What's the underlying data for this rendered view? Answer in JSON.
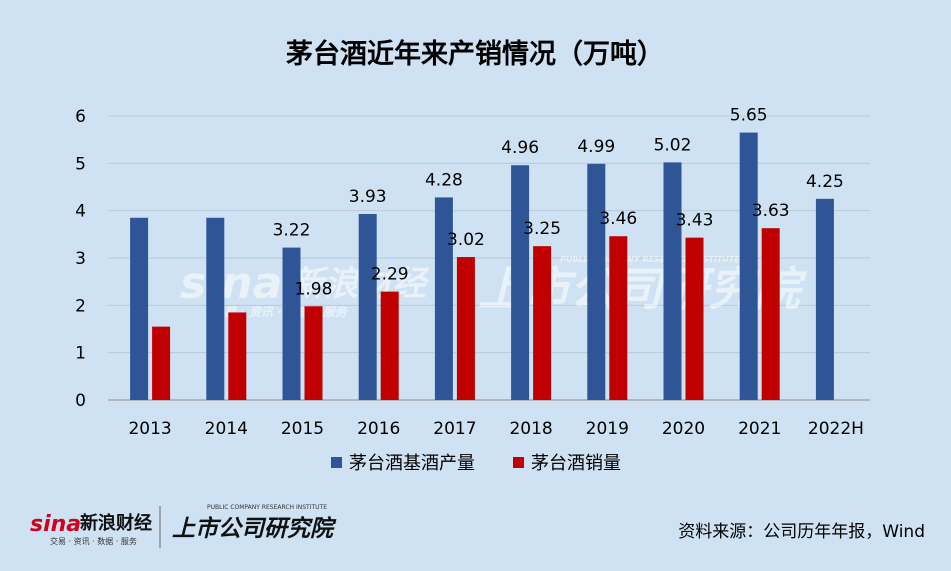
{
  "chart_data": {
    "type": "bar",
    "title": "茅台酒近年来产销情况（万吨）",
    "categories": [
      "2013",
      "2014",
      "2015",
      "2016",
      "2017",
      "2018",
      "2019",
      "2020",
      "2021",
      "2022H"
    ],
    "series": [
      {
        "name": "茅台酒基酒产量",
        "color": "#2f5597",
        "values": [
          3.85,
          3.85,
          3.22,
          3.93,
          4.28,
          4.96,
          4.99,
          5.02,
          5.65,
          4.25
        ],
        "labels": [
          "",
          "",
          "3.22",
          "3.93",
          "4.28",
          "4.96",
          "4.99",
          "5.02",
          "5.65",
          "4.25"
        ]
      },
      {
        "name": "茅台酒销量",
        "color": "#c00000",
        "values": [
          1.55,
          1.85,
          1.98,
          2.29,
          3.02,
          3.25,
          3.46,
          3.43,
          3.63,
          null
        ],
        "labels": [
          "",
          "",
          "1.98",
          "2.29",
          "3.02",
          "3.25",
          "3.46",
          "3.43",
          "3.63",
          ""
        ]
      }
    ],
    "ylim": [
      0,
      6
    ],
    "yticks": [
      "0",
      "1",
      "2",
      "3",
      "4",
      "5",
      "6"
    ],
    "grid": true,
    "legend": "bottom"
  },
  "source_note": "资料来源：公司历年年报，Wind",
  "branding": {
    "sina_mark": "sina",
    "sina_name": "新浪财经",
    "sina_slogan": "交易 · 资讯 · 数据 · 服务",
    "institute_name": "上市公司研究院",
    "institute_en": "PUBLIC COMPANY RESEARCH INSTITUTE"
  }
}
